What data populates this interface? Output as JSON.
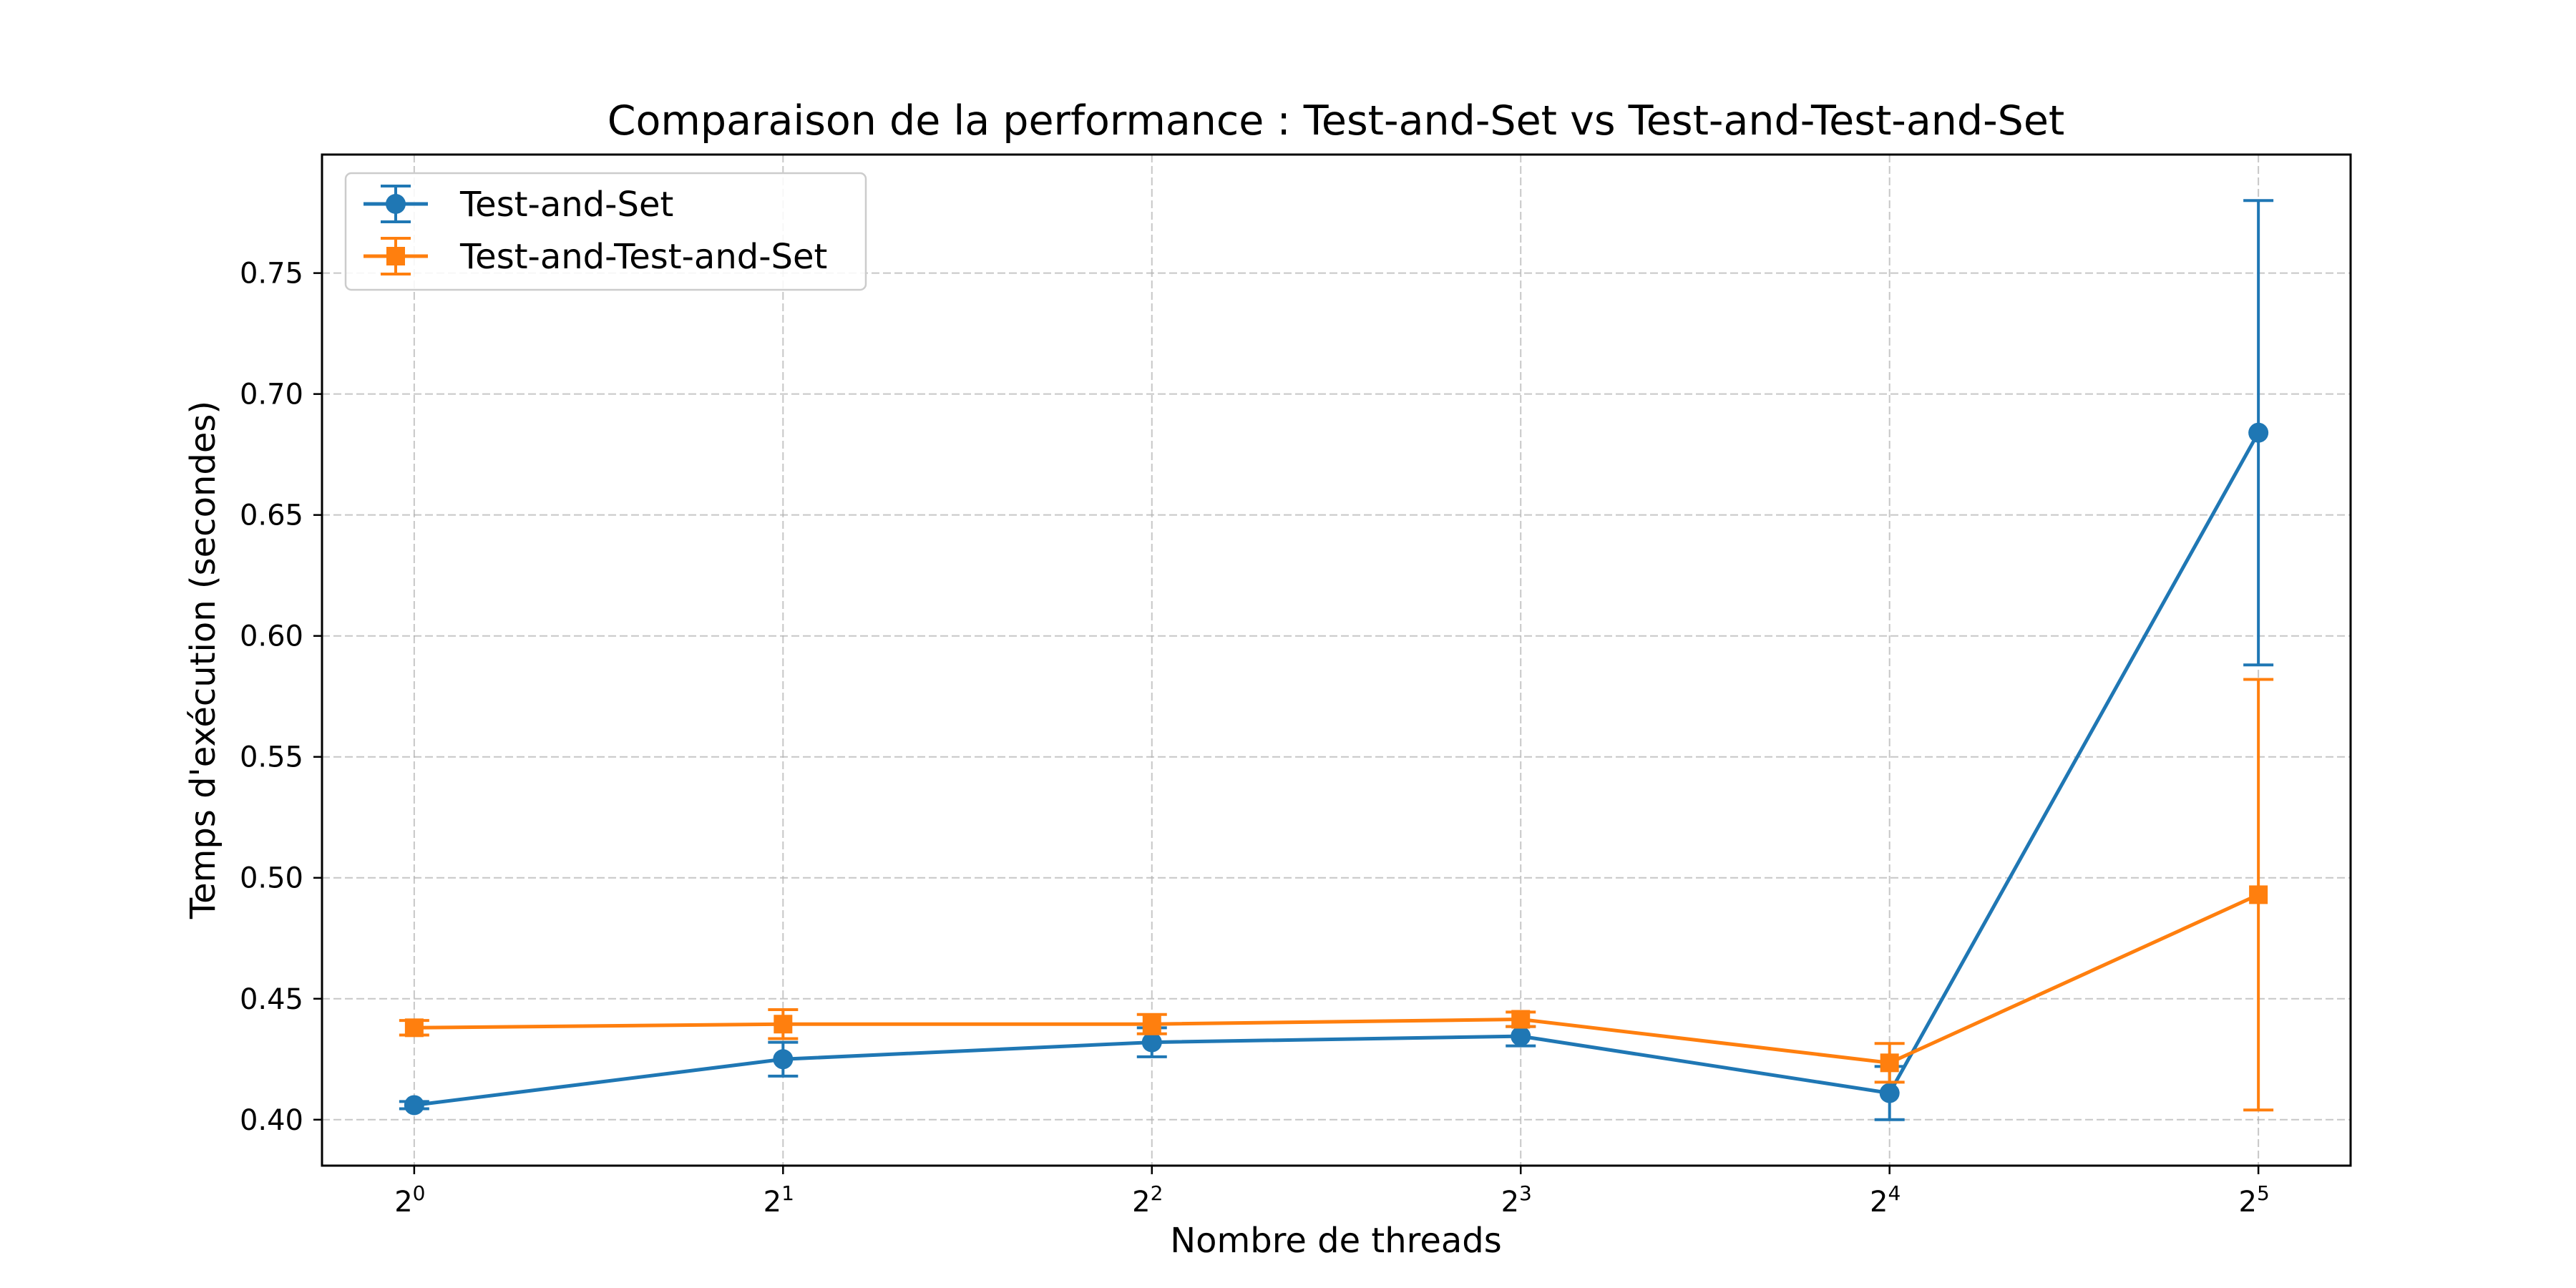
{
  "chart_data": {
    "type": "line",
    "title": "Comparaison de la performance : Test-and-Set vs Test-and-Test-and-Set",
    "xlabel": "Nombre de threads",
    "ylabel": "Temps d'exécution (secondes)",
    "x": [
      1,
      2,
      4,
      8,
      16,
      32
    ],
    "x_scale": "log2",
    "x_tick_labels": [
      {
        "base": "2",
        "exp": "0"
      },
      {
        "base": "2",
        "exp": "1"
      },
      {
        "base": "2",
        "exp": "2"
      },
      {
        "base": "2",
        "exp": "3"
      },
      {
        "base": "2",
        "exp": "4"
      },
      {
        "base": "2",
        "exp": "5"
      }
    ],
    "y_ticks": [
      "0.40",
      "0.45",
      "0.50",
      "0.55",
      "0.60",
      "0.65",
      "0.70",
      "0.75"
    ],
    "ylim": [
      0.381,
      0.799
    ],
    "grid": true,
    "legend_position": "top-left",
    "series": [
      {
        "name": "Test-and-Set",
        "color": "#1f77b4",
        "marker": "circle",
        "values": [
          0.406,
          0.425,
          0.432,
          0.4345,
          0.411,
          0.684
        ],
        "error": [
          0.0015,
          0.007,
          0.006,
          0.004,
          0.011,
          0.096
        ]
      },
      {
        "name": "Test-and-Test-and-Set",
        "color": "#ff7f0e",
        "marker": "square",
        "values": [
          0.438,
          0.4395,
          0.4395,
          0.4415,
          0.4235,
          0.493
        ],
        "error": [
          0.003,
          0.006,
          0.004,
          0.003,
          0.008,
          0.089
        ]
      }
    ]
  }
}
